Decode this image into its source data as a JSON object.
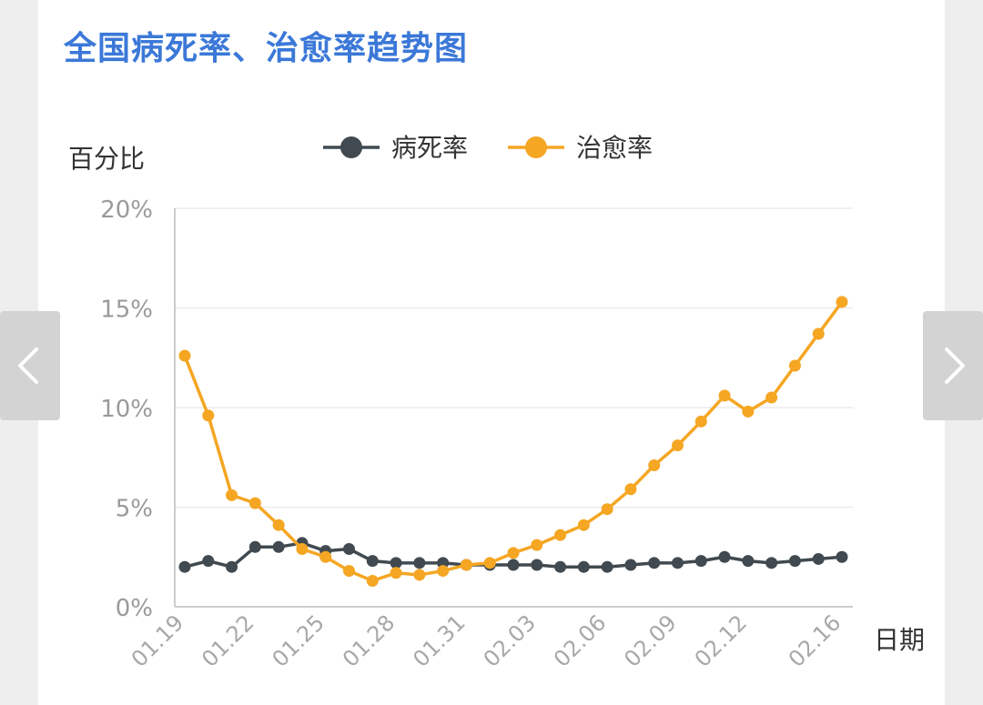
{
  "title": "全国病死率、治愈率趋势图",
  "nav": {
    "prev_icon": "chevron-left-icon",
    "next_icon": "chevron-right-icon"
  },
  "chart_data": {
    "type": "line",
    "ylabel": "百分比",
    "xlabel": "日期",
    "ylim": [
      0,
      20
    ],
    "yticks": [
      "0%",
      "5%",
      "10%",
      "15%",
      "20%"
    ],
    "ytick_values": [
      0,
      5,
      10,
      15,
      20
    ],
    "x_tick_labels": [
      "01.19",
      "01.22",
      "01.25",
      "01.28",
      "01.31",
      "02.03",
      "02.06",
      "02.09",
      "02.12",
      "02.16"
    ],
    "x_tick_indices": [
      0,
      3,
      6,
      9,
      12,
      15,
      18,
      21,
      24,
      28
    ],
    "grid": true,
    "legend_position": "top-center",
    "series": [
      {
        "name": "病死率",
        "color": "#404a50",
        "values": [
          2.0,
          2.3,
          2.0,
          3.0,
          3.0,
          3.2,
          2.8,
          2.9,
          2.3,
          2.2,
          2.2,
          2.2,
          2.1,
          2.1,
          2.1,
          2.1,
          2.0,
          2.0,
          2.0,
          2.1,
          2.2,
          2.2,
          2.3,
          2.5,
          2.3,
          2.2,
          2.3,
          2.4,
          2.5
        ]
      },
      {
        "name": "治愈率",
        "color": "#f5a623",
        "values": [
          12.6,
          9.6,
          5.6,
          5.2,
          4.1,
          2.9,
          2.5,
          1.8,
          1.3,
          1.7,
          1.6,
          1.8,
          2.1,
          2.2,
          2.7,
          3.1,
          3.6,
          4.1,
          4.9,
          5.9,
          7.1,
          8.1,
          9.3,
          10.6,
          9.8,
          10.5,
          12.1,
          13.7,
          15.3
        ]
      }
    ]
  }
}
